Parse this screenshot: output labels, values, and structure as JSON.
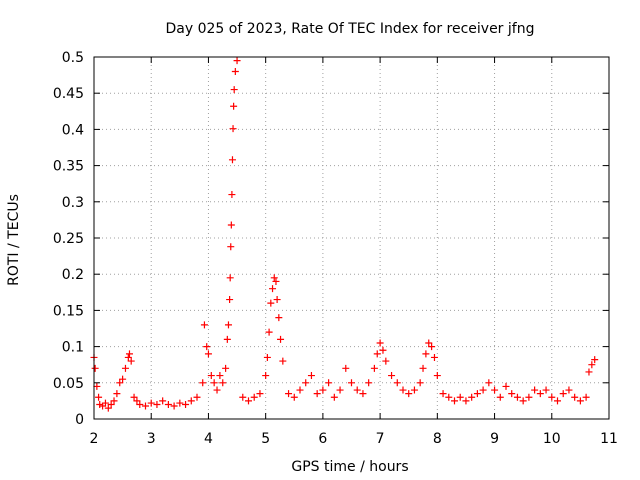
{
  "chart_data": {
    "type": "scatter",
    "title": "Day 025 of 2023, Rate Of TEC Index for receiver jfng",
    "xlabel": "GPS time / hours",
    "ylabel": "ROTI / TECUs",
    "xlim": [
      2,
      11
    ],
    "ylim": [
      0,
      0.5
    ],
    "grid": true,
    "marker": "+",
    "x_ticks": [
      "2",
      "3",
      "4",
      "5",
      "6",
      "7",
      "8",
      "9",
      "10",
      "11"
    ],
    "y_ticks": [
      "0",
      "0.05",
      "0.1",
      "0.15",
      "0.2",
      "0.25",
      "0.3",
      "0.35",
      "0.4",
      "0.45",
      "0.5"
    ],
    "series": [
      {
        "name": "ROTI",
        "color": "#ff0000",
        "x": [
          2.0,
          2.02,
          2.05,
          2.08,
          2.1,
          2.15,
          2.2,
          2.25,
          2.3,
          2.35,
          2.4,
          2.45,
          2.5,
          2.55,
          2.6,
          2.62,
          2.65,
          2.7,
          2.75,
          2.8,
          2.9,
          3.0,
          3.1,
          3.2,
          3.3,
          3.4,
          3.5,
          3.6,
          3.7,
          3.8,
          3.9,
          3.93,
          3.97,
          4.0,
          4.05,
          4.1,
          4.15,
          4.2,
          4.25,
          4.3,
          4.33,
          4.35,
          4.37,
          4.38,
          4.39,
          4.4,
          4.41,
          4.42,
          4.43,
          4.44,
          4.45,
          4.47,
          4.5,
          4.6,
          4.7,
          4.8,
          4.9,
          5.0,
          5.03,
          5.06,
          5.09,
          5.12,
          5.15,
          5.18,
          5.2,
          5.23,
          5.26,
          5.3,
          5.4,
          5.5,
          5.6,
          5.7,
          5.8,
          5.9,
          6.0,
          6.1,
          6.2,
          6.3,
          6.4,
          6.5,
          6.6,
          6.7,
          6.8,
          6.9,
          6.95,
          7.0,
          7.05,
          7.1,
          7.2,
          7.3,
          7.4,
          7.5,
          7.6,
          7.7,
          7.75,
          7.8,
          7.85,
          7.9,
          7.95,
          8.0,
          8.1,
          8.2,
          8.3,
          8.4,
          8.5,
          8.6,
          8.7,
          8.8,
          8.9,
          9.0,
          9.1,
          9.2,
          9.3,
          9.4,
          9.5,
          9.6,
          9.7,
          9.8,
          9.9,
          10.0,
          10.1,
          10.2,
          10.3,
          10.4,
          10.5,
          10.6,
          10.65,
          10.7,
          10.75
        ],
        "y": [
          0.085,
          0.07,
          0.045,
          0.03,
          0.02,
          0.018,
          0.022,
          0.015,
          0.02,
          0.025,
          0.035,
          0.05,
          0.055,
          0.07,
          0.085,
          0.09,
          0.08,
          0.03,
          0.025,
          0.02,
          0.018,
          0.022,
          0.02,
          0.025,
          0.02,
          0.018,
          0.022,
          0.02,
          0.025,
          0.03,
          0.05,
          0.13,
          0.1,
          0.09,
          0.06,
          0.05,
          0.04,
          0.06,
          0.05,
          0.07,
          0.11,
          0.13,
          0.165,
          0.195,
          0.238,
          0.268,
          0.31,
          0.358,
          0.401,
          0.432,
          0.455,
          0.48,
          0.495,
          0.03,
          0.025,
          0.03,
          0.035,
          0.06,
          0.085,
          0.12,
          0.16,
          0.18,
          0.195,
          0.19,
          0.165,
          0.14,
          0.11,
          0.08,
          0.035,
          0.03,
          0.04,
          0.05,
          0.06,
          0.035,
          0.04,
          0.05,
          0.03,
          0.04,
          0.07,
          0.05,
          0.04,
          0.035,
          0.05,
          0.07,
          0.09,
          0.105,
          0.095,
          0.08,
          0.06,
          0.05,
          0.04,
          0.035,
          0.04,
          0.05,
          0.07,
          0.09,
          0.105,
          0.1,
          0.085,
          0.06,
          0.035,
          0.03,
          0.025,
          0.03,
          0.025,
          0.03,
          0.035,
          0.04,
          0.05,
          0.04,
          0.03,
          0.045,
          0.035,
          0.03,
          0.025,
          0.03,
          0.04,
          0.035,
          0.04,
          0.03,
          0.025,
          0.035,
          0.04,
          0.03,
          0.025,
          0.03,
          0.065,
          0.075,
          0.082
        ]
      }
    ]
  }
}
